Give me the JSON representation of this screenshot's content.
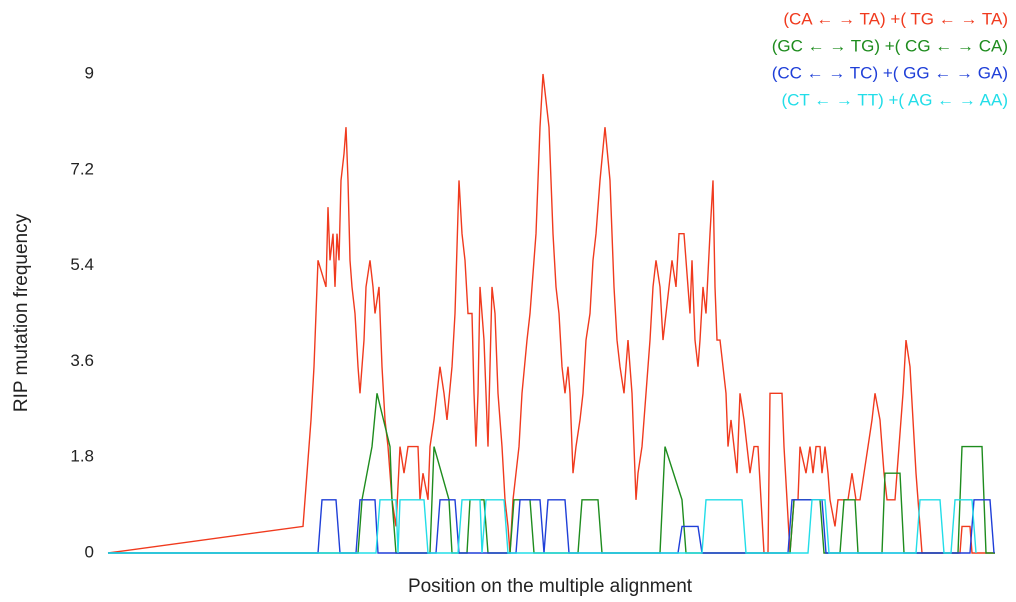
{
  "chart_data": {
    "type": "line",
    "xlabel": "Position on the multiple alignment",
    "ylabel": "RIP mutation frequency",
    "xlim": [
      108,
      995
    ],
    "ylim": [
      0,
      9
    ],
    "yticks": [
      0,
      1.8,
      3.6,
      5.4,
      7.2,
      9
    ],
    "legend": "top-right",
    "series": [
      {
        "name": "(CA ← → TA) +( TG ← → TA)",
        "color": "#f03a1e",
        "x": [
          108,
          303,
          307,
          311,
          314,
          316,
          318,
          326,
          328,
          330,
          333,
          335,
          337,
          339,
          341,
          344,
          346,
          348,
          350,
          352,
          355,
          358,
          360,
          364,
          366,
          370,
          373,
          375,
          379,
          382,
          385,
          388,
          392,
          396,
          400,
          404,
          408,
          418,
          420,
          423,
          428,
          430,
          434,
          437,
          440,
          444,
          447,
          452,
          455,
          459,
          462,
          465,
          468,
          472,
          474,
          476,
          478,
          480,
          484,
          486,
          488,
          490,
          492,
          495,
          498,
          502,
          505,
          508,
          510,
          513,
          516,
          519,
          522,
          527,
          530,
          532,
          534,
          536,
          538,
          540,
          543,
          549,
          551,
          553,
          556,
          559,
          562,
          565,
          568,
          570,
          573,
          576,
          580,
          583,
          586,
          590,
          593,
          596,
          600,
          605,
          610,
          612,
          614,
          617,
          620,
          624,
          628,
          632,
          634,
          636,
          638,
          642,
          646,
          650,
          653,
          656,
          660,
          663,
          666,
          669,
          672,
          676,
          679,
          684,
          688,
          690,
          692,
          695,
          698,
          700,
          703,
          706,
          710,
          713,
          715,
          717,
          720,
          723,
          726,
          728,
          731,
          734,
          737,
          740,
          744,
          747,
          750,
          754,
          758,
          761,
          764,
          768,
          770,
          782,
          784,
          787,
          790,
          794,
          798,
          800,
          806,
          810,
          813,
          816,
          820,
          822,
          825,
          828,
          830,
          835,
          838,
          842,
          848,
          852,
          856,
          860,
          864,
          868,
          872,
          875,
          880,
          884,
          887,
          890,
          895,
          899,
          903,
          906,
          910,
          913,
          916,
          918,
          922,
          960,
          962,
          970,
          972,
          995
        ],
        "values": [
          0,
          0.5,
          1.5,
          2.5,
          3.5,
          4.5,
          5.5,
          5,
          6.5,
          5.5,
          6,
          5,
          6,
          5.5,
          7,
          7.5,
          8,
          7,
          5.5,
          5,
          4.5,
          3.5,
          3,
          4,
          5,
          5.5,
          5,
          4.5,
          5,
          3.5,
          2.5,
          2,
          1,
          0.5,
          2,
          1.5,
          2,
          2,
          1,
          1.5,
          1,
          2,
          2.5,
          3,
          3.5,
          3,
          2.5,
          3.5,
          4.5,
          7,
          6,
          5.5,
          4.5,
          4.5,
          3,
          2,
          3,
          5,
          4,
          3,
          2,
          3.5,
          5,
          4.5,
          3,
          2,
          1,
          0.5,
          0,
          1,
          1.5,
          2,
          3,
          4,
          4.5,
          5,
          5.5,
          6,
          7,
          8,
          9,
          8,
          7,
          6,
          5,
          4.5,
          3.5,
          3,
          3.5,
          3,
          1.5,
          2,
          2.5,
          3,
          4,
          4.5,
          5.5,
          6,
          7,
          8,
          7,
          6,
          5,
          4,
          3.5,
          3,
          4,
          3,
          2,
          1,
          1.5,
          2,
          3,
          4,
          5,
          5.5,
          5,
          4,
          4.5,
          5,
          5.5,
          5,
          6,
          6,
          5,
          4.5,
          5.5,
          4,
          3.5,
          4,
          5,
          4.5,
          6,
          7,
          5,
          4,
          4,
          3.5,
          3,
          2,
          2.5,
          2,
          1.5,
          3,
          2.5,
          2,
          1.5,
          2,
          2,
          1,
          0,
          0,
          3,
          3,
          2,
          1,
          0,
          1,
          1,
          2,
          1.5,
          2,
          1.5,
          2,
          2,
          1.5,
          2,
          1.5,
          1,
          0.5,
          1,
          1,
          1,
          1.5,
          1,
          1,
          1.5,
          2,
          2.5,
          3,
          2.5,
          1.5,
          1,
          1,
          1,
          2,
          3,
          4,
          3.5,
          2.5,
          1.5,
          1,
          0,
          0,
          0.5,
          0.5,
          0,
          0
        ]
      },
      {
        "name": "(GC ← → TG) +( CG ← → CA)",
        "color": "#1e8c1e",
        "x": [
          108,
          358,
          362,
          372,
          377,
          390,
          392,
          396,
          430,
          434,
          449,
          452,
          467,
          470,
          484,
          488,
          510,
          514,
          530,
          534,
          578,
          582,
          598,
          602,
          660,
          665,
          682,
          686,
          790,
          794,
          820,
          824,
          840,
          844,
          855,
          858,
          882,
          885,
          900,
          904,
          958,
          962,
          982,
          986,
          995
        ],
        "values": [
          0,
          0,
          1,
          2,
          3,
          2,
          1,
          0,
          0,
          2,
          1,
          0,
          0,
          1,
          1,
          0,
          0,
          1,
          1,
          0,
          0,
          1,
          1,
          0,
          0,
          2,
          1,
          0,
          0,
          1,
          1,
          0,
          0,
          1,
          1,
          0,
          0,
          1.5,
          1.5,
          0,
          0,
          2,
          2,
          0,
          0
        ]
      },
      {
        "name": "(CC ← → TC) +( GG ← → GA)",
        "color": "#1f3fd8",
        "x": [
          108,
          318,
          322,
          336,
          340,
          356,
          360,
          375,
          378,
          436,
          440,
          455,
          459,
          516,
          520,
          540,
          544,
          548,
          565,
          569,
          678,
          682,
          698,
          702,
          788,
          792,
          822,
          826,
          970,
          974,
          990,
          994
        ],
        "values": [
          0,
          0,
          1,
          1,
          0,
          0,
          1,
          1,
          0,
          0,
          1,
          1,
          0,
          0,
          1,
          1,
          0,
          1,
          1,
          0,
          0,
          0.5,
          0.5,
          0,
          0,
          1,
          1,
          0,
          0,
          1,
          1,
          0
        ]
      },
      {
        "name": "(CT ← → TT) +( AG ← → AA)",
        "color": "#22dde8",
        "x": [
          108,
          376,
          380,
          396,
          398,
          400,
          424,
          428,
          458,
          462,
          480,
          482,
          486,
          504,
          508,
          702,
          706,
          742,
          746,
          808,
          812,
          825,
          829,
          916,
          920,
          940,
          944,
          951,
          955,
          972,
          976
        ],
        "values": [
          0,
          0,
          1,
          1,
          0,
          1,
          1,
          0,
          0,
          1,
          1,
          0,
          1,
          1,
          0,
          0,
          1,
          1,
          0,
          0,
          1,
          1,
          0,
          0,
          1,
          1,
          0,
          0,
          1,
          1,
          0
        ]
      }
    ]
  }
}
